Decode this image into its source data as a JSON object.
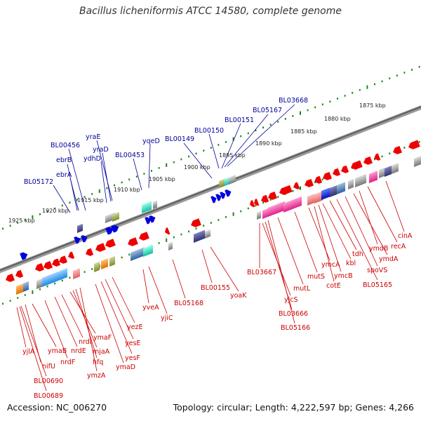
{
  "title": "Bacillus licheniformis ATCC 14580, complete genome",
  "accession": "Accession: NC_006270",
  "topology": "Topology: circular; Length: 4,222,597 bp; Genes: 4,266",
  "colors": {
    "backbone": "#7a7a7a",
    "tick": "#1a8a1a",
    "forward_gene": "#0000dd",
    "reverse_gene": "#ee0000",
    "forward_label": "#000099",
    "reverse_label": "#cc0000"
  },
  "scale_labels": [
    "1925 kbp",
    "1920 kbp",
    "1915 kbp",
    "1910 kbp",
    "1905 kbp",
    "1900 kbp",
    "1895 kbp",
    "1890 kbp",
    "1885 kbp",
    "1880 kbp",
    "1875 kbp"
  ],
  "top_gene_labels": [
    "BL05172",
    "ebrA",
    "ebrB",
    "BL00456",
    "ydhD",
    "yraD",
    "yraE",
    "BL00453",
    "yqeD",
    "BL00149",
    "BL00150",
    "BL00151",
    "BL05167",
    "BL03668"
  ],
  "bottom_gene_labels": [
    "yjlA",
    "nifU",
    "ymaB",
    "nrdF",
    "nrdE",
    "nrdI",
    "ymaF",
    "mjaA",
    "hfq",
    "ymzA",
    "ymaD",
    "yesF",
    "yesE",
    "yezE",
    "yveA",
    "yjiC",
    "BL05168",
    "BL00155",
    "yoaK",
    "BL03667",
    "yjcS",
    "BL03666",
    "BL05166",
    "mutL",
    "mutS",
    "ymcA",
    "cotE",
    "kbl",
    "ymcB",
    "tdh",
    "BL05165",
    "spoVS",
    "ymdA",
    "ymdB",
    "recA",
    "cinA",
    "BL00690",
    "BL00689"
  ]
}
